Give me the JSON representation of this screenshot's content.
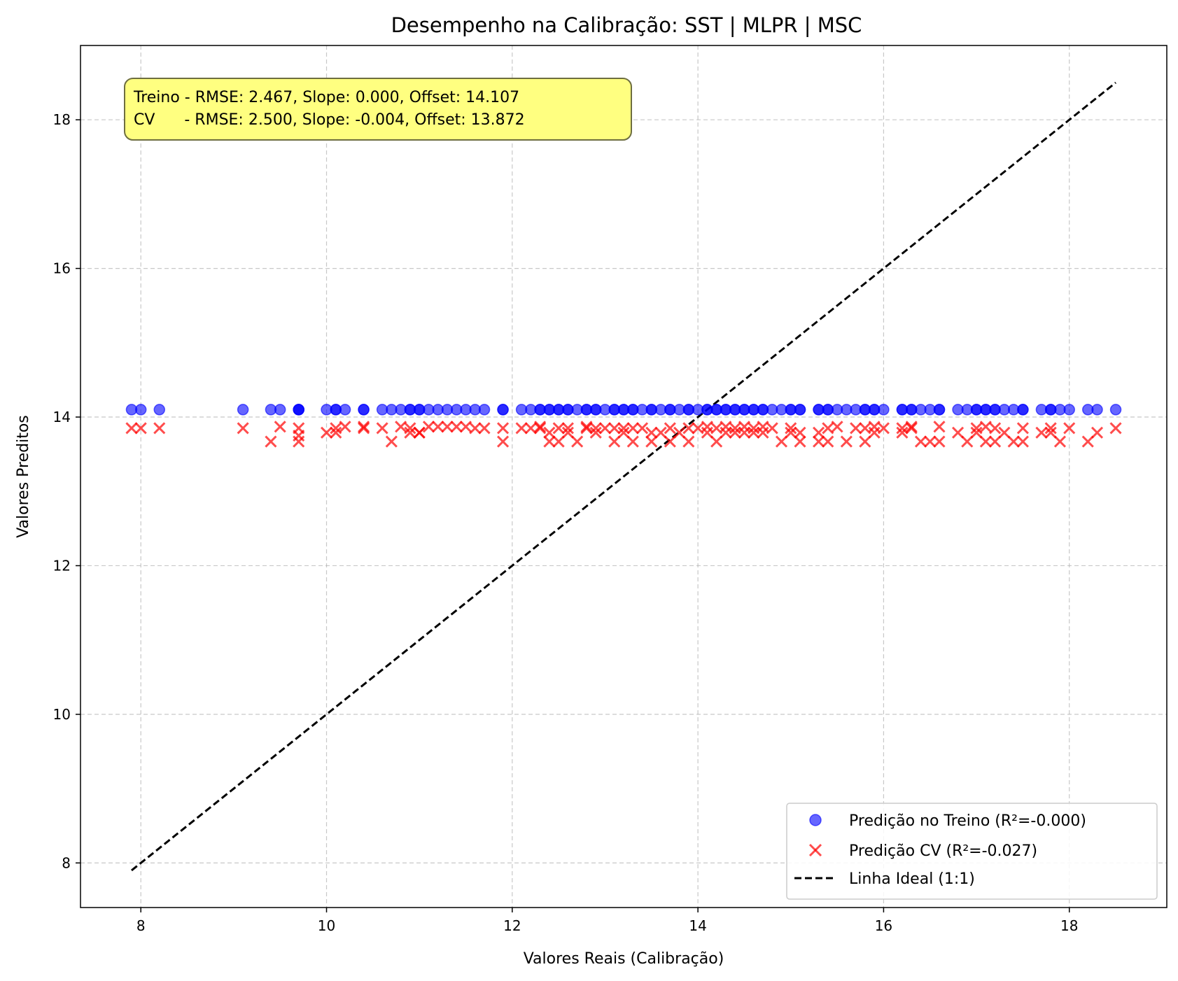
{
  "chart_data": {
    "type": "scatter",
    "title": "Desempenho na Calibração: SST | MLPR | MSC",
    "xlabel": "Valores Reais (Calibração)",
    "ylabel": "Valores Preditos",
    "xlim": [
      7.35,
      19.05
    ],
    "ylim": [
      7.4,
      19.0
    ],
    "xticks": [
      8,
      10,
      12,
      14,
      16,
      18
    ],
    "yticks": [
      8,
      10,
      12,
      14,
      16,
      18
    ],
    "grid": true,
    "legend_position": "lower-right",
    "annotation": {
      "line1": "Treino - RMSE: 2.467, Slope: 0.000, Offset: 14.107",
      "line2": "CV      - RMSE: 2.500, Slope: -0.004, Offset: 13.872",
      "background": "#ffff80"
    },
    "series": [
      {
        "name": "Predição no Treino (R²=-0.000)",
        "marker": "circle",
        "color": "#0000ff",
        "points": [
          [
            7.9,
            14.1
          ],
          [
            8.0,
            14.1
          ],
          [
            8.2,
            14.1
          ],
          [
            9.1,
            14.1
          ],
          [
            9.4,
            14.1
          ],
          [
            9.5,
            14.1
          ],
          [
            9.7,
            14.1
          ],
          [
            9.7,
            14.1
          ],
          [
            9.7,
            14.1
          ],
          [
            10.0,
            14.1
          ],
          [
            10.1,
            14.1
          ],
          [
            10.1,
            14.1
          ],
          [
            10.2,
            14.1
          ],
          [
            10.4,
            14.1
          ],
          [
            10.4,
            14.1
          ],
          [
            10.6,
            14.1
          ],
          [
            10.7,
            14.1
          ],
          [
            10.8,
            14.1
          ],
          [
            10.9,
            14.1
          ],
          [
            10.9,
            14.1
          ],
          [
            11.0,
            14.1
          ],
          [
            11.0,
            14.1
          ],
          [
            11.1,
            14.1
          ],
          [
            11.2,
            14.1
          ],
          [
            11.3,
            14.1
          ],
          [
            11.4,
            14.1
          ],
          [
            11.5,
            14.1
          ],
          [
            11.6,
            14.1
          ],
          [
            11.7,
            14.1
          ],
          [
            11.9,
            14.1
          ],
          [
            11.9,
            14.1
          ],
          [
            12.1,
            14.1
          ],
          [
            12.2,
            14.1
          ],
          [
            12.3,
            14.1
          ],
          [
            12.3,
            14.1
          ],
          [
            12.4,
            14.1
          ],
          [
            12.4,
            14.1
          ],
          [
            12.5,
            14.1
          ],
          [
            12.5,
            14.1
          ],
          [
            12.6,
            14.1
          ],
          [
            12.6,
            14.1
          ],
          [
            12.7,
            14.1
          ],
          [
            12.8,
            14.1
          ],
          [
            12.8,
            14.1
          ],
          [
            12.9,
            14.1
          ],
          [
            12.9,
            14.1
          ],
          [
            13.0,
            14.1
          ],
          [
            13.1,
            14.1
          ],
          [
            13.1,
            14.1
          ],
          [
            13.2,
            14.1
          ],
          [
            13.2,
            14.1
          ],
          [
            13.3,
            14.1
          ],
          [
            13.3,
            14.1
          ],
          [
            13.4,
            14.1
          ],
          [
            13.5,
            14.1
          ],
          [
            13.5,
            14.1
          ],
          [
            13.6,
            14.1
          ],
          [
            13.7,
            14.1
          ],
          [
            13.7,
            14.1
          ],
          [
            13.8,
            14.1
          ],
          [
            13.9,
            14.1
          ],
          [
            13.9,
            14.1
          ],
          [
            14.0,
            14.1
          ],
          [
            14.1,
            14.1
          ],
          [
            14.1,
            14.1
          ],
          [
            14.2,
            14.1
          ],
          [
            14.2,
            14.1
          ],
          [
            14.3,
            14.1
          ],
          [
            14.3,
            14.1
          ],
          [
            14.4,
            14.1
          ],
          [
            14.4,
            14.1
          ],
          [
            14.5,
            14.1
          ],
          [
            14.5,
            14.1
          ],
          [
            14.6,
            14.1
          ],
          [
            14.6,
            14.1
          ],
          [
            14.7,
            14.1
          ],
          [
            14.7,
            14.1
          ],
          [
            14.8,
            14.1
          ],
          [
            14.9,
            14.1
          ],
          [
            15.0,
            14.1
          ],
          [
            15.0,
            14.1
          ],
          [
            15.1,
            14.1
          ],
          [
            15.1,
            14.1
          ],
          [
            15.3,
            14.1
          ],
          [
            15.3,
            14.1
          ],
          [
            15.4,
            14.1
          ],
          [
            15.4,
            14.1
          ],
          [
            15.5,
            14.1
          ],
          [
            15.6,
            14.1
          ],
          [
            15.7,
            14.1
          ],
          [
            15.8,
            14.1
          ],
          [
            15.8,
            14.1
          ],
          [
            15.9,
            14.1
          ],
          [
            15.9,
            14.1
          ],
          [
            16.0,
            14.1
          ],
          [
            16.2,
            14.1
          ],
          [
            16.2,
            14.1
          ],
          [
            16.3,
            14.1
          ],
          [
            16.3,
            14.1
          ],
          [
            16.4,
            14.1
          ],
          [
            16.5,
            14.1
          ],
          [
            16.6,
            14.1
          ],
          [
            16.6,
            14.1
          ],
          [
            16.8,
            14.1
          ],
          [
            16.9,
            14.1
          ],
          [
            17.0,
            14.1
          ],
          [
            17.0,
            14.1
          ],
          [
            17.1,
            14.1
          ],
          [
            17.1,
            14.1
          ],
          [
            17.2,
            14.1
          ],
          [
            17.2,
            14.1
          ],
          [
            17.3,
            14.1
          ],
          [
            17.4,
            14.1
          ],
          [
            17.5,
            14.1
          ],
          [
            17.5,
            14.1
          ],
          [
            17.7,
            14.1
          ],
          [
            17.8,
            14.1
          ],
          [
            17.8,
            14.1
          ],
          [
            17.9,
            14.1
          ],
          [
            18.0,
            14.1
          ],
          [
            18.2,
            14.1
          ],
          [
            18.3,
            14.1
          ],
          [
            18.5,
            14.1
          ]
        ]
      },
      {
        "name": "Predição CV (R²=-0.027)",
        "marker": "x",
        "color": "#ff0000",
        "points": [
          [
            7.9,
            13.85
          ],
          [
            8.0,
            13.85
          ],
          [
            8.2,
            13.85
          ],
          [
            9.1,
            13.85
          ],
          [
            9.4,
            13.67
          ],
          [
            9.5,
            13.87
          ],
          [
            9.7,
            13.85
          ],
          [
            9.7,
            13.75
          ],
          [
            9.7,
            13.67
          ],
          [
            10.0,
            13.79
          ],
          [
            10.1,
            13.79
          ],
          [
            10.1,
            13.85
          ],
          [
            10.2,
            13.87
          ],
          [
            10.4,
            13.87
          ],
          [
            10.4,
            13.85
          ],
          [
            10.6,
            13.85
          ],
          [
            10.7,
            13.67
          ],
          [
            10.8,
            13.87
          ],
          [
            10.9,
            13.79
          ],
          [
            10.9,
            13.85
          ],
          [
            11.0,
            13.79
          ],
          [
            11.0,
            13.79
          ],
          [
            11.1,
            13.87
          ],
          [
            11.2,
            13.87
          ],
          [
            11.3,
            13.87
          ],
          [
            11.4,
            13.87
          ],
          [
            11.5,
            13.87
          ],
          [
            11.6,
            13.85
          ],
          [
            11.7,
            13.85
          ],
          [
            11.9,
            13.85
          ],
          [
            11.9,
            13.67
          ],
          [
            12.1,
            13.85
          ],
          [
            12.2,
            13.85
          ],
          [
            12.3,
            13.85
          ],
          [
            12.3,
            13.87
          ],
          [
            12.4,
            13.79
          ],
          [
            12.4,
            13.67
          ],
          [
            12.5,
            13.67
          ],
          [
            12.5,
            13.85
          ],
          [
            12.6,
            13.85
          ],
          [
            12.6,
            13.79
          ],
          [
            12.7,
            13.67
          ],
          [
            12.8,
            13.87
          ],
          [
            12.8,
            13.85
          ],
          [
            12.9,
            13.85
          ],
          [
            12.9,
            13.79
          ],
          [
            13.0,
            13.85
          ],
          [
            13.1,
            13.85
          ],
          [
            13.1,
            13.67
          ],
          [
            13.2,
            13.85
          ],
          [
            13.2,
            13.79
          ],
          [
            13.3,
            13.67
          ],
          [
            13.3,
            13.85
          ],
          [
            13.4,
            13.85
          ],
          [
            13.5,
            13.79
          ],
          [
            13.5,
            13.67
          ],
          [
            13.6,
            13.79
          ],
          [
            13.7,
            13.85
          ],
          [
            13.7,
            13.67
          ],
          [
            13.8,
            13.79
          ],
          [
            13.9,
            13.85
          ],
          [
            13.9,
            13.67
          ],
          [
            14.0,
            13.85
          ],
          [
            14.1,
            13.79
          ],
          [
            14.1,
            13.87
          ],
          [
            14.2,
            13.85
          ],
          [
            14.2,
            13.67
          ],
          [
            14.3,
            13.87
          ],
          [
            14.3,
            13.79
          ],
          [
            14.4,
            13.85
          ],
          [
            14.4,
            13.79
          ],
          [
            14.5,
            13.87
          ],
          [
            14.5,
            13.79
          ],
          [
            14.6,
            13.79
          ],
          [
            14.6,
            13.85
          ],
          [
            14.7,
            13.87
          ],
          [
            14.7,
            13.79
          ],
          [
            14.8,
            13.85
          ],
          [
            14.9,
            13.67
          ],
          [
            15.0,
            13.85
          ],
          [
            15.0,
            13.79
          ],
          [
            15.1,
            13.67
          ],
          [
            15.1,
            13.79
          ],
          [
            15.3,
            13.79
          ],
          [
            15.3,
            13.67
          ],
          [
            15.4,
            13.85
          ],
          [
            15.4,
            13.67
          ],
          [
            15.5,
            13.87
          ],
          [
            15.6,
            13.67
          ],
          [
            15.7,
            13.85
          ],
          [
            15.8,
            13.85
          ],
          [
            15.8,
            13.67
          ],
          [
            15.9,
            13.79
          ],
          [
            15.9,
            13.87
          ],
          [
            16.0,
            13.85
          ],
          [
            16.2,
            13.85
          ],
          [
            16.2,
            13.79
          ],
          [
            16.3,
            13.85
          ],
          [
            16.3,
            13.87
          ],
          [
            16.4,
            13.67
          ],
          [
            16.5,
            13.67
          ],
          [
            16.6,
            13.87
          ],
          [
            16.6,
            13.67
          ],
          [
            16.8,
            13.79
          ],
          [
            16.9,
            13.67
          ],
          [
            17.0,
            13.85
          ],
          [
            17.0,
            13.79
          ],
          [
            17.1,
            13.67
          ],
          [
            17.1,
            13.87
          ],
          [
            17.2,
            13.85
          ],
          [
            17.2,
            13.67
          ],
          [
            17.3,
            13.79
          ],
          [
            17.4,
            13.67
          ],
          [
            17.5,
            13.85
          ],
          [
            17.5,
            13.67
          ],
          [
            17.7,
            13.79
          ],
          [
            17.8,
            13.85
          ],
          [
            17.8,
            13.79
          ],
          [
            17.9,
            13.67
          ],
          [
            18.0,
            13.85
          ],
          [
            18.2,
            13.67
          ],
          [
            18.3,
            13.79
          ],
          [
            18.5,
            13.85
          ]
        ]
      },
      {
        "name": "Linha Ideal (1:1)",
        "marker": "dashed-line",
        "color": "#000000",
        "points": [
          [
            7.9,
            7.9
          ],
          [
            18.5,
            18.5
          ]
        ]
      }
    ]
  }
}
